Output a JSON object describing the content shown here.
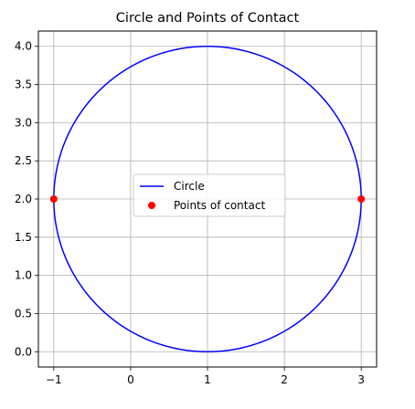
{
  "chart_data": {
    "type": "line",
    "title": "Circle and Points of Contact",
    "xlabel": "",
    "ylabel": "",
    "xlim": [
      -1.2,
      3.2
    ],
    "ylim": [
      -0.2,
      4.2
    ],
    "xticks": [
      -1,
      0,
      1,
      2,
      3
    ],
    "yticks": [
      0.0,
      0.5,
      1.0,
      1.5,
      2.0,
      2.5,
      3.0,
      3.5,
      4.0
    ],
    "xtick_labels": [
      "−1",
      "0",
      "1",
      "2",
      "3"
    ],
    "ytick_labels": [
      "0.0",
      "0.5",
      "1.0",
      "1.5",
      "2.0",
      "2.5",
      "3.0",
      "3.5",
      "4.0"
    ],
    "grid": true,
    "legend_position": "center",
    "series": [
      {
        "name": "Circle",
        "kind": "line",
        "color": "#0000ff",
        "shape": "circle",
        "center": [
          1,
          2
        ],
        "radius": 2
      },
      {
        "name": "Points of contact",
        "kind": "scatter",
        "color": "#ff0000",
        "points": [
          {
            "x": -1,
            "y": 2
          },
          {
            "x": 3,
            "y": 2
          }
        ]
      }
    ]
  }
}
